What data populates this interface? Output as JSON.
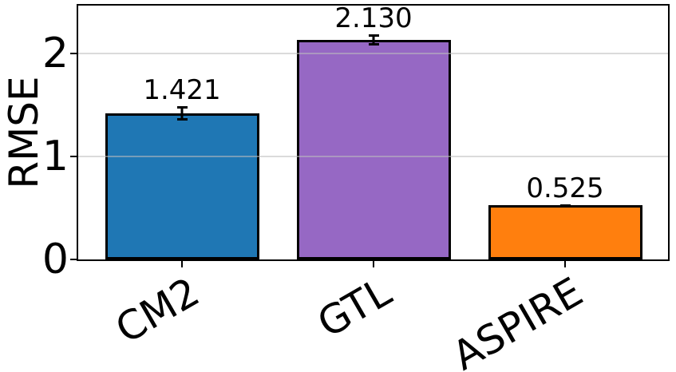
{
  "chart_data": {
    "type": "bar",
    "title": "",
    "xlabel": "",
    "ylabel": "RMSE",
    "categories": [
      "CM2",
      "GTL",
      "ASPIRE"
    ],
    "values": [
      1.421,
      2.13,
      0.525
    ],
    "errors": [
      0.07,
      0.055,
      0.008
    ],
    "bar_labels": [
      "1.421",
      "2.130",
      "0.525"
    ],
    "bar_colors": [
      "#1f77b4",
      "#9668c4",
      "#ff7f0e"
    ],
    "bar_edge_color": "#000000",
    "error_color": "#000000",
    "yticks": [
      0,
      1,
      2
    ],
    "ytick_labels": [
      "0",
      "1",
      "2"
    ],
    "ylim": [
      0,
      2.465
    ],
    "grid": "horizontal",
    "grid_color": "#d9d9d9",
    "legend": "none",
    "x_tick_rotation_deg": 30,
    "background_color": "#ffffff"
  }
}
